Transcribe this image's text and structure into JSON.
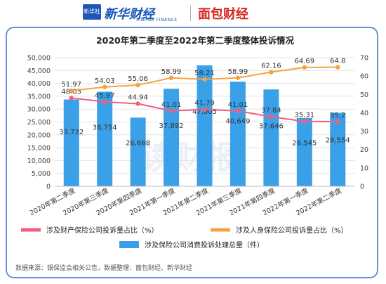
{
  "header": {
    "xinhua_badge": "新华社",
    "xinhua_name": "新华财经",
    "xinhua_en": "XINHUA FINANCE",
    "mianbao_name": "面包财经"
  },
  "watermark": "读财报",
  "footnote": "数据来源：银保监会相关公告，数据整理：面包财经、新华财经",
  "chart_data": {
    "type": "bar",
    "title": "2020年第二季度至2022年第二季度整体投诉情况",
    "categories": [
      "2020年第二季度",
      "2020年第三季度",
      "2020年第四季度",
      "2021年第一季度",
      "2021年第二季度",
      "2021年第三季度",
      "2021年第四季度",
      "2022年第一季度",
      "2022年第二季度"
    ],
    "y_left": {
      "min": 0,
      "max": 50000,
      "ticks": [
        "0",
        "5,000",
        "10,000",
        "15,000",
        "20,000",
        "25,000",
        "30,000",
        "35,000",
        "40,000",
        "45,000",
        "50,000"
      ]
    },
    "y_right": {
      "min": 0,
      "max": 70,
      "ticks": [
        "0",
        "10",
        "20",
        "30",
        "40",
        "50",
        "60",
        "70"
      ]
    },
    "series": [
      {
        "name": "涉及保险公司消费投诉处理总量（件）",
        "type": "bar",
        "axis": "left",
        "color": "#3aa0e8",
        "values": [
          33732,
          36754,
          26688,
          37892,
          47005,
          40649,
          37646,
          26545,
          28554
        ],
        "labels": [
          "33,732",
          "36,754",
          "26,688",
          "37,892",
          "47,005",
          "40,649",
          "37,646",
          "26,545",
          "28,554"
        ]
      },
      {
        "name": "涉及财产保险公司投诉量占比（%）",
        "type": "line",
        "axis": "right",
        "color": "#f0607a",
        "values": [
          48.03,
          45.97,
          44.94,
          41.01,
          41.79,
          41.01,
          37.84,
          35.31,
          35.2
        ],
        "labels": [
          "48.03",
          "45.97",
          "44.94",
          "41.01",
          "41.79",
          "41.01",
          "37.84",
          "35.31",
          "35.2"
        ]
      },
      {
        "name": "涉及人身保险公司投诉量占比（%）",
        "type": "line",
        "axis": "right",
        "color": "#f4a340",
        "values": [
          51.97,
          54.03,
          55.06,
          58.99,
          58.21,
          58.99,
          62.16,
          64.69,
          64.8
        ],
        "labels": [
          "51.97",
          "54.03",
          "55.06",
          "58.99",
          "58.21",
          "58.99",
          "62.16",
          "64.69",
          "64.8"
        ]
      }
    ]
  }
}
